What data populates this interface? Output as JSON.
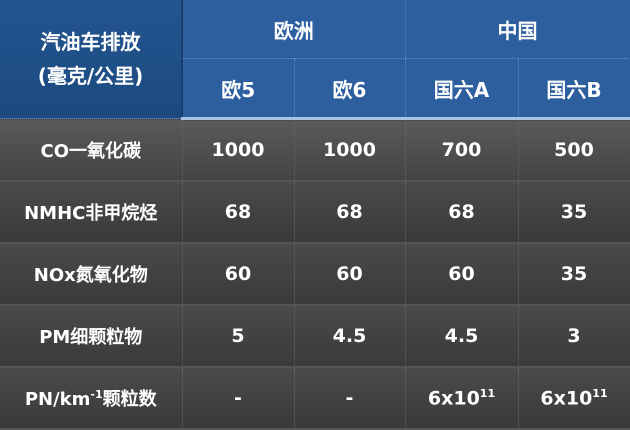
{
  "header": {
    "corner_line1": "汽油车排放",
    "corner_line2": "(毫克/公里)",
    "groups": [
      "欧洲",
      "中国"
    ],
    "standards": [
      "欧5",
      "欧6",
      "国六A",
      "国六B"
    ]
  },
  "rows": [
    {
      "label": "CO一氧化碳",
      "values": [
        "1000",
        "1000",
        "700",
        "500"
      ]
    },
    {
      "label": "NMHC非甲烷烃",
      "values": [
        "68",
        "68",
        "68",
        "35"
      ]
    },
    {
      "label": "NOx氮氧化物",
      "values": [
        "60",
        "60",
        "60",
        "35"
      ]
    },
    {
      "label": "PM细颗粒物",
      "values": [
        "5",
        "4.5",
        "4.5",
        "3"
      ]
    },
    {
      "label_prefix": "PN/km",
      "label_sup": "-1",
      "label_suffix": "颗粒数",
      "values": [
        {
          "text": "-"
        },
        {
          "text": "-"
        },
        {
          "base": "6x10",
          "exp": "11"
        },
        {
          "base": "6x10",
          "exp": "11"
        }
      ]
    }
  ],
  "colors": {
    "header_blue": "#2d5f9e",
    "corner_blue": "#1f4e86",
    "body_gray": "#424244",
    "text": "#ffffff"
  }
}
